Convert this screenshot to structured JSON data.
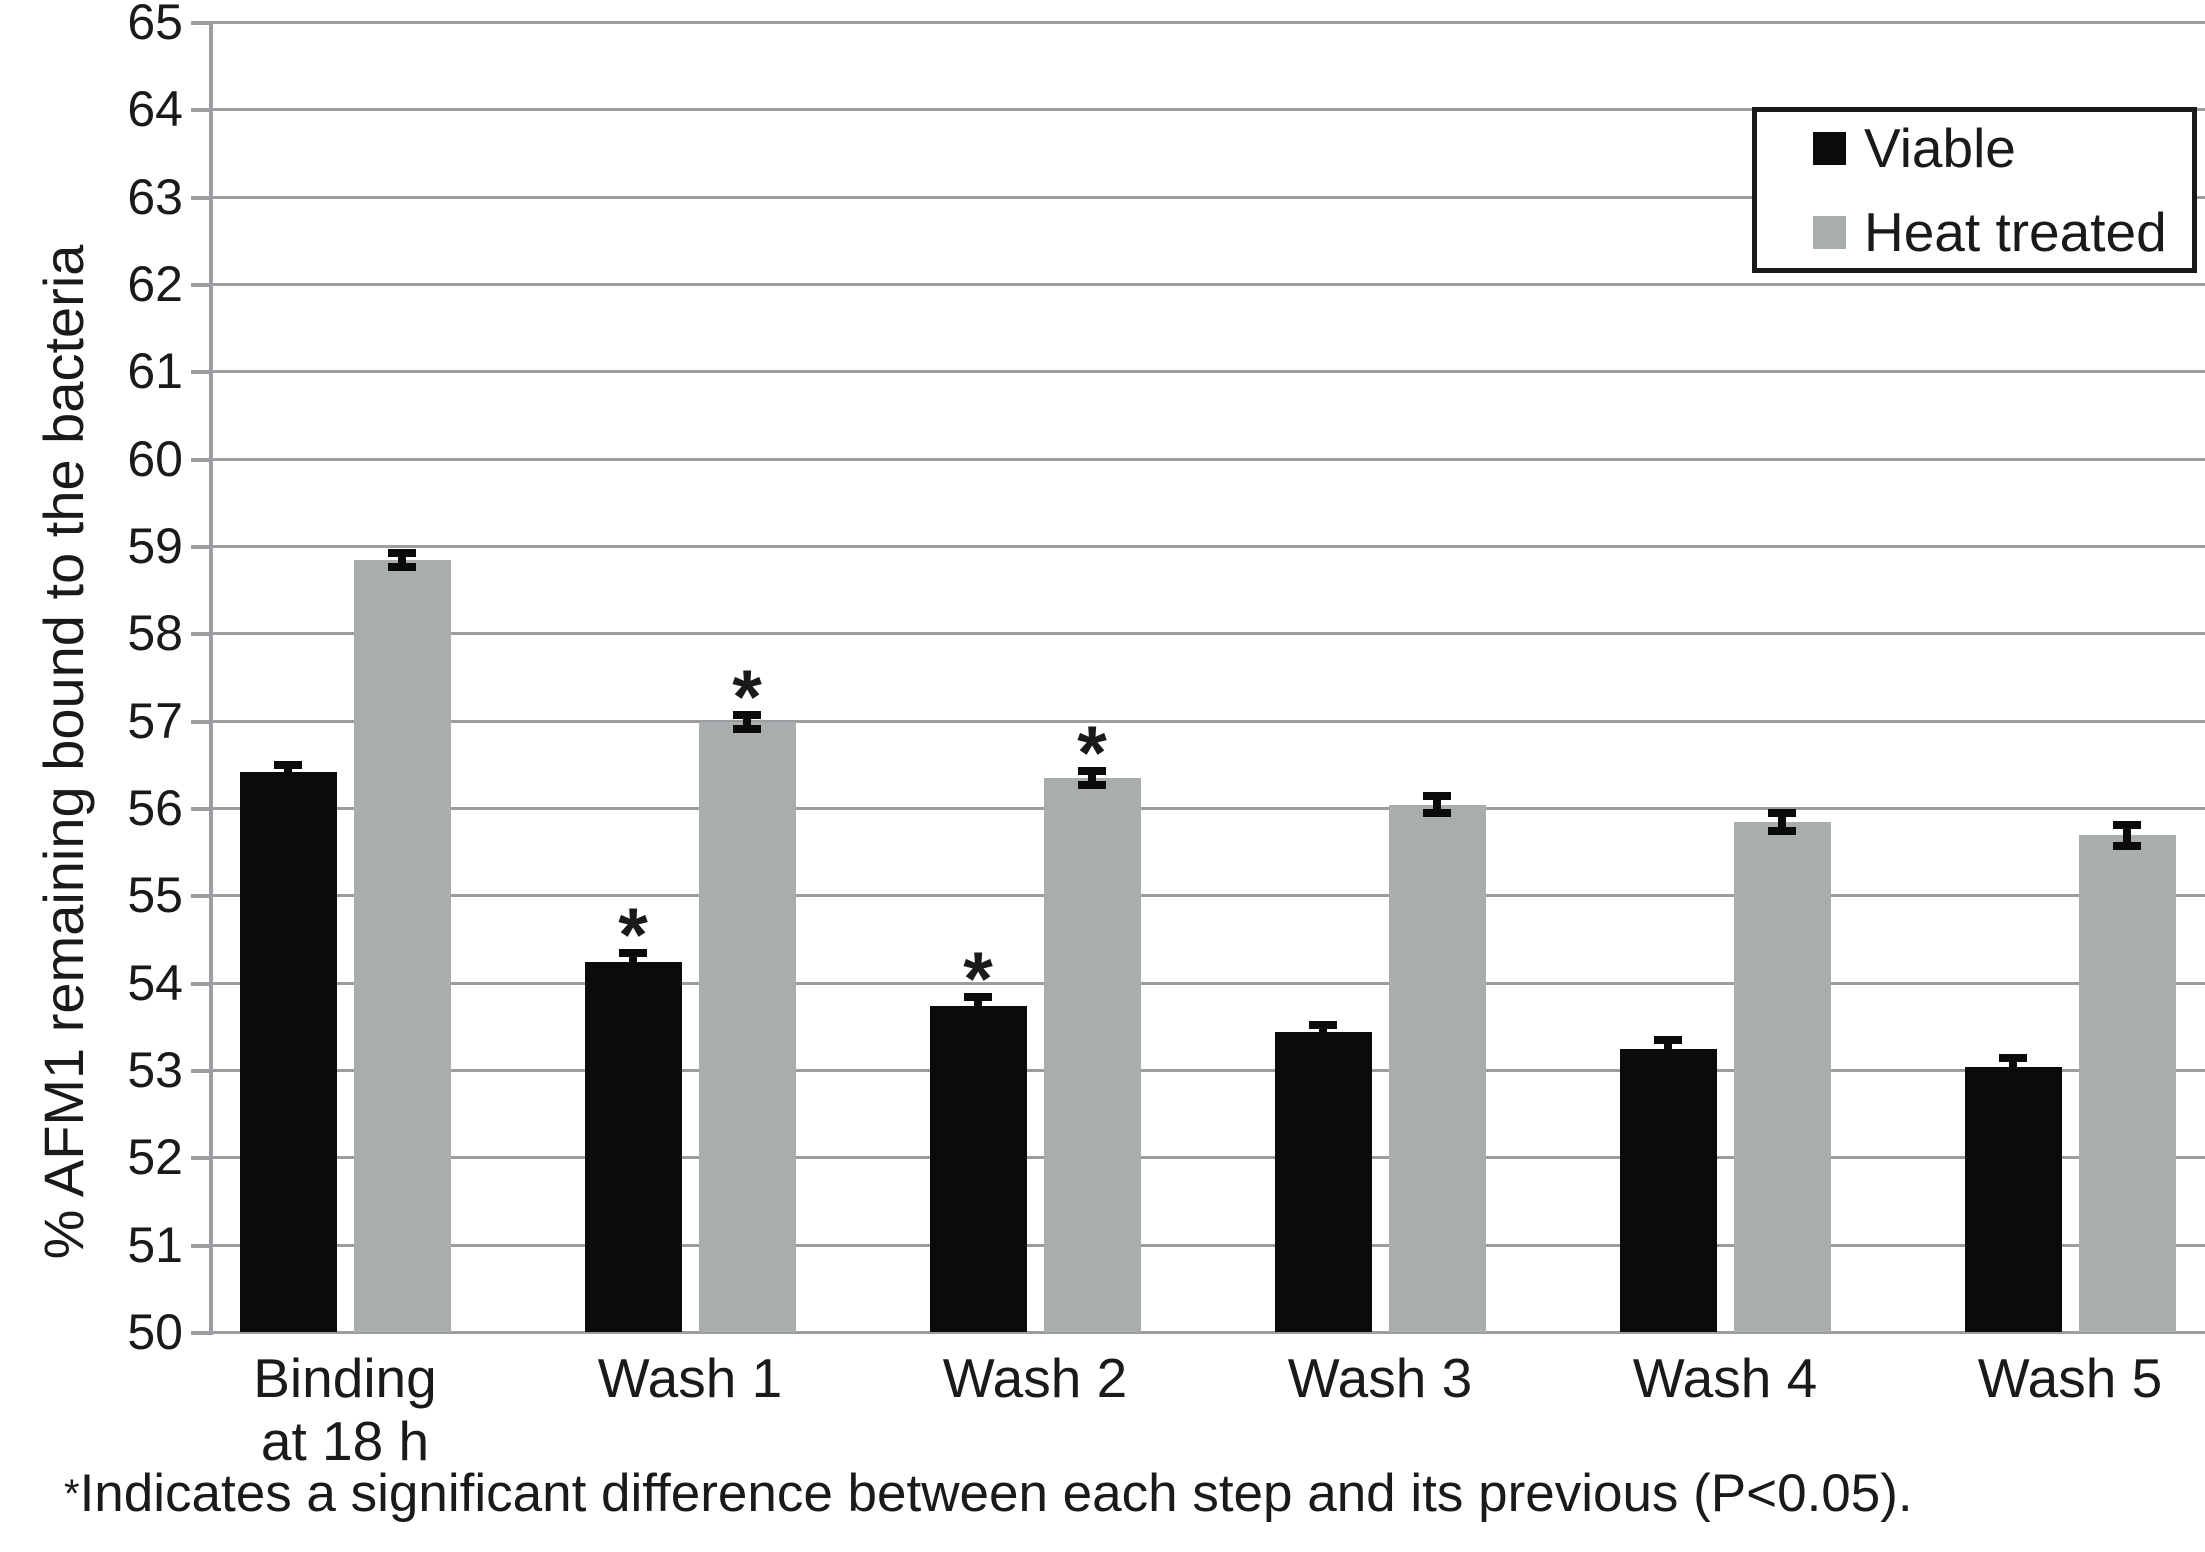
{
  "chart_data": {
    "type": "bar",
    "title": "",
    "xlabel": "",
    "ylabel": "% AFM1 remaining bound to the bacteria",
    "ylim": [
      50,
      65
    ],
    "ytick_step": 1,
    "grid": true,
    "legend_position": "top-right",
    "categories": [
      "Binding\nat 18 h",
      "Wash 1",
      "Wash 2",
      "Wash 3",
      "Wash 4",
      "Wash 5"
    ],
    "series": [
      {
        "name": "Viable",
        "color": "#0b0b0b",
        "values": [
          56.42,
          54.25,
          53.75,
          53.45,
          53.25,
          53.05
        ],
        "errors": [
          0.08,
          0.1,
          0.1,
          0.08,
          0.1,
          0.1
        ],
        "significant": [
          false,
          true,
          true,
          false,
          false,
          false
        ]
      },
      {
        "name": "Heat treated",
        "color": "#aaadae",
        "values": [
          58.85,
          57.0,
          56.35,
          56.05,
          55.85,
          55.7
        ],
        "errors": [
          0.08,
          0.08,
          0.08,
          0.1,
          0.1,
          0.12
        ],
        "significant": [
          false,
          true,
          true,
          false,
          false,
          false
        ]
      }
    ],
    "significance_marker": "*",
    "footnote_symbol": "*",
    "footnote_text": "Indicates a significant difference between each step and its previous (P<0.05)."
  },
  "colors": {
    "background": "#ffffff",
    "grid": "#9b9da0",
    "axis": "#9b9da0",
    "text": "#1a1a1a",
    "error_bar": "#0b0b0b",
    "legend_border": "#1a1a1a"
  }
}
